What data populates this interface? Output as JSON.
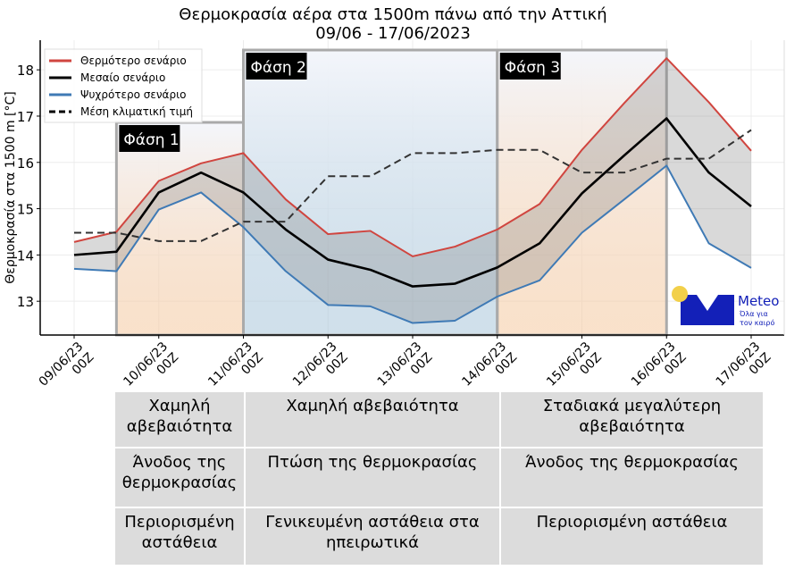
{
  "title_line1": "Θερμοκρασία αέρα στα 1500m πάνω από την Αττική",
  "title_line2": "09/06 - 17/06/2023",
  "chart_data": {
    "type": "line",
    "title": "Θερμοκρασία αέρα στα 1500m πάνω από την Αττική 09/06 - 17/06/2023",
    "ylabel": "Θερμοκρασία στα 1500 m [°C]",
    "xlabel": "",
    "ylim": [
      12.27,
      18.64
    ],
    "yticks": [
      13,
      14,
      15,
      16,
      17,
      18
    ],
    "grid": true,
    "legend_placement": "top-left",
    "x_tick_labels": [
      "09/06/23\n00Z",
      "10/06/23\n00Z",
      "11/06/23\n00Z",
      "12/06/23\n00Z",
      "13/06/23\n00Z",
      "14/06/23\n00Z",
      "15/06/23\n00Z",
      "16/06/23\n00Z",
      "17/06/23\n00Z"
    ],
    "x": [
      "09/06 00Z",
      "09/06 12Z",
      "10/06 00Z",
      "10/06 12Z",
      "11/06 00Z",
      "11/06 12Z",
      "12/06 00Z",
      "12/06 12Z",
      "13/06 00Z",
      "13/06 12Z",
      "14/06 00Z",
      "14/06 12Z",
      "15/06 00Z",
      "15/06 12Z",
      "16/06 00Z",
      "16/06 12Z",
      "17/06 00Z"
    ],
    "series": [
      {
        "name": "Θερμότερο σενάριο",
        "color": "#d0453f",
        "style": "solid",
        "values": [
          14.28,
          14.5,
          15.6,
          15.98,
          16.2,
          15.2,
          14.45,
          14.52,
          13.97,
          14.18,
          14.55,
          15.1,
          16.27,
          17.28,
          18.25,
          17.3,
          16.25
        ]
      },
      {
        "name": "Μεσαίο σενάριο",
        "color": "#000000",
        "style": "solid",
        "values": [
          14.0,
          14.07,
          15.35,
          15.78,
          15.35,
          14.55,
          13.9,
          13.68,
          13.32,
          13.38,
          13.73,
          14.25,
          15.33,
          16.15,
          16.95,
          15.78,
          15.05
        ]
      },
      {
        "name": "Ψυχρότερο σενάριο",
        "color": "#3f7ab5",
        "style": "solid",
        "values": [
          13.7,
          13.65,
          14.98,
          15.35,
          14.6,
          13.65,
          12.92,
          12.89,
          12.53,
          12.58,
          13.1,
          13.45,
          14.48,
          15.2,
          15.93,
          14.25,
          13.72
        ]
      },
      {
        "name": "Μέση κλιματική τιμή",
        "color": "#000000",
        "style": "dashed",
        "values": [
          14.48,
          14.48,
          14.3,
          14.3,
          14.72,
          14.72,
          15.7,
          15.7,
          16.2,
          16.2,
          16.27,
          16.27,
          15.78,
          15.78,
          16.08,
          16.08,
          16.7
        ]
      }
    ],
    "phases": [
      {
        "label": "Φάση 1",
        "start": "09/06 12Z",
        "end": "11/06 00Z",
        "color": "#f5c9a0"
      },
      {
        "label": "Φάση 2",
        "start": "11/06 00Z",
        "end": "14/06 00Z",
        "color": "#a9c6da"
      },
      {
        "label": "Φάση 3",
        "start": "14/06 00Z",
        "end": "16/06 00Z",
        "color": "#f5c9a0"
      }
    ]
  },
  "table": {
    "rows": [
      [
        "Χαμηλή αβεβαιότητα",
        "Χαμηλή αβεβαιότητα",
        "Σταδιακά μεγαλύτερη αβεβαιότητα"
      ],
      [
        "Άνοδος της θερμοκρασίας",
        "Πτώση της θερμοκρασίας",
        "Άνοδος της θερμοκρασίας"
      ],
      [
        "Περιορισμένη αστάθεια",
        "Γενικευμένη αστάθεια στα ηπειρωτικά",
        "Περιορισμένη αστάθεια"
      ]
    ]
  },
  "logo": {
    "name": "Meteo",
    "tagline_1": "Όλα για",
    "tagline_2": "τον καιρό",
    "colors": {
      "blue": "#1320b8",
      "sun": "#f2d04a"
    }
  }
}
